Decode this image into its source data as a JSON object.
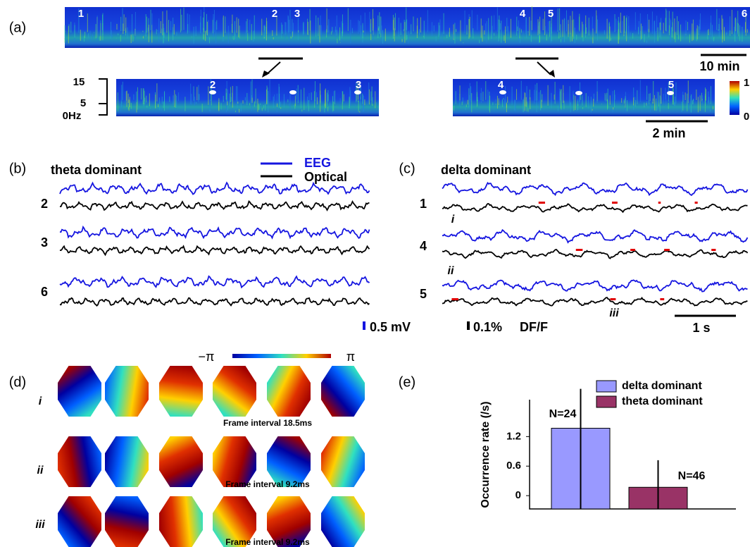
{
  "panel_labels": [
    "(a)",
    "(b)",
    "(c)",
    "(d)",
    "(e)"
  ],
  "a": {
    "markers": [
      "1",
      "2",
      "3",
      "4",
      "5",
      "6"
    ],
    "zoom_left_markers": [
      "2",
      "3"
    ],
    "zoom_right_markers": [
      "4",
      "5"
    ],
    "freq_ticks": [
      "15",
      "5",
      "0Hz"
    ],
    "colorbar_ticks": [
      "1",
      "0"
    ],
    "scale_long": "10 min",
    "scale_short": "2 min"
  },
  "b": {
    "title": "theta dominant",
    "legend": [
      "EEG",
      "Optical"
    ],
    "rows": [
      "2",
      "3",
      "6"
    ]
  },
  "c": {
    "title": "delta dominant",
    "rows": [
      "1",
      "4",
      "5"
    ],
    "events": [
      "i",
      "ii",
      "iii"
    ],
    "scale_time": "1 s"
  },
  "scale": {
    "eeg": "0.5 mV",
    "optical": "0.1%",
    "unit": "DF/F"
  },
  "d": {
    "phase_min": "−π",
    "phase_max": "π",
    "rows": [
      {
        "label": "i",
        "caption": "Frame interval 18.5ms"
      },
      {
        "label": "ii",
        "caption": "Frame interval 9.2ms"
      },
      {
        "label": "iii",
        "caption": "Frame interval 9.2ms"
      }
    ]
  },
  "chart_data": {
    "type": "bar",
    "ylabel": "Occurrence rate (/s)",
    "categories": [
      "delta dominant",
      "theta dominant"
    ],
    "values": [
      1.37,
      0.17
    ],
    "errors": [
      0.8,
      0.55
    ],
    "colors": [
      "#9999ff",
      "#993366"
    ],
    "n_labels": [
      "N=24",
      "N=46"
    ],
    "ylim": [
      -0.27,
      1.95
    ],
    "yticks": [
      0,
      0.6,
      1.2
    ]
  }
}
